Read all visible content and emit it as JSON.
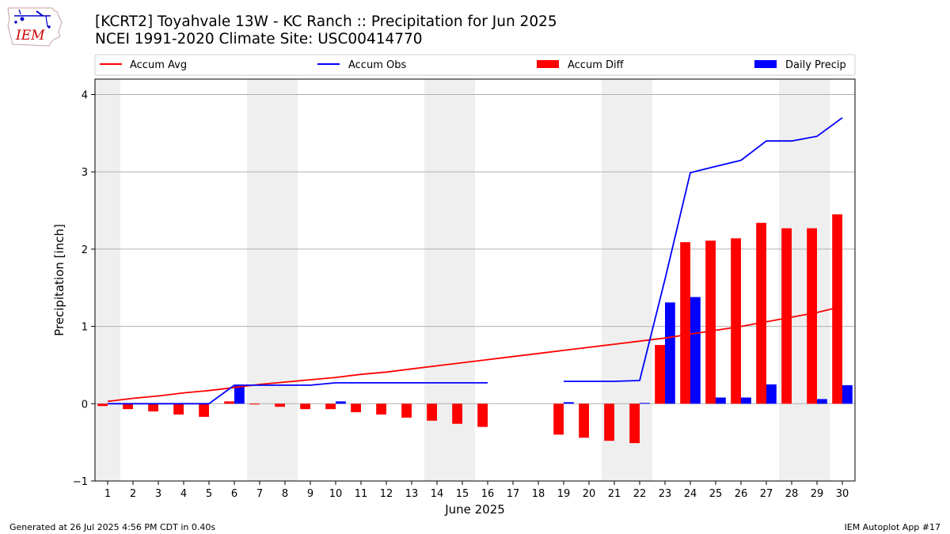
{
  "header": {
    "title_line1": "[KCRT2] Toyahvale 13W - KC Ranch :: Precipitation for Jun 2025",
    "title_line2": "NCEI 1991-2020 Climate Site: USC00414770",
    "logo_text": "IEM"
  },
  "footer": {
    "generated": "Generated at 26 Jul 2025 4:56 PM CDT in 0.40s",
    "app": "IEM Autoplot App #17"
  },
  "colors": {
    "accum_avg": "#ff0000",
    "accum_obs": "#0000ff",
    "accum_diff": "#ff0000",
    "daily_precip": "#0000ff",
    "weekend_shade": "#efefef",
    "grid": "#b0b0b0"
  },
  "chart_data": {
    "type": "bar",
    "xlabel": "June 2025",
    "ylabel": "Precipitation [inch]",
    "xlim": [
      0.5,
      30.5
    ],
    "ylim": [
      -1,
      4.2
    ],
    "yticks": [
      -1,
      0,
      1,
      2,
      3,
      4
    ],
    "xticks": [
      1,
      2,
      3,
      4,
      5,
      6,
      7,
      8,
      9,
      10,
      11,
      12,
      13,
      14,
      15,
      16,
      17,
      18,
      19,
      20,
      21,
      22,
      23,
      24,
      25,
      26,
      27,
      28,
      29,
      30
    ],
    "grid": "horizontal",
    "legend_placement": "top",
    "legend": [
      "Accum Avg",
      "Accum Obs",
      "Accum Diff",
      "Daily Precip"
    ],
    "weekends": [
      1,
      7,
      8,
      14,
      15,
      21,
      22,
      28,
      29
    ],
    "days": [
      1,
      2,
      3,
      4,
      5,
      6,
      7,
      8,
      9,
      10,
      11,
      12,
      13,
      14,
      15,
      16,
      17,
      18,
      19,
      20,
      21,
      22,
      23,
      24,
      25,
      26,
      27,
      28,
      29,
      30
    ],
    "series": [
      {
        "name": "Accum Avg",
        "kind": "line",
        "values": [
          0.03,
          0.07,
          0.1,
          0.14,
          0.17,
          0.21,
          0.25,
          0.28,
          0.31,
          0.34,
          0.38,
          0.41,
          0.45,
          0.49,
          0.53,
          0.57,
          0.61,
          0.65,
          0.69,
          0.73,
          0.77,
          0.81,
          0.85,
          0.9,
          0.95,
          1.0,
          1.06,
          1.12,
          1.18,
          1.26
        ]
      },
      {
        "name": "Accum Obs",
        "kind": "line",
        "values": [
          0.0,
          0.0,
          0.0,
          0.0,
          0.0,
          0.24,
          0.24,
          0.24,
          0.24,
          0.27,
          0.27,
          0.27,
          0.27,
          0.27,
          0.27,
          0.27,
          null,
          null,
          0.29,
          0.29,
          0.29,
          0.3,
          1.61,
          2.99,
          3.07,
          3.15,
          3.4,
          3.4,
          3.46,
          3.7
        ]
      },
      {
        "name": "Accum Diff",
        "kind": "bar",
        "values": [
          -0.03,
          -0.07,
          -0.1,
          -0.14,
          -0.17,
          0.03,
          -0.01,
          -0.04,
          -0.07,
          -0.07,
          -0.11,
          -0.14,
          -0.18,
          -0.22,
          -0.26,
          -0.3,
          null,
          null,
          -0.4,
          -0.44,
          -0.48,
          -0.51,
          0.76,
          2.09,
          2.11,
          2.14,
          2.34,
          2.27,
          2.27,
          2.45
        ]
      },
      {
        "name": "Daily Precip",
        "kind": "bar",
        "values": [
          0,
          0,
          0,
          0,
          0,
          0.24,
          0,
          0,
          0,
          0.03,
          0,
          0,
          0,
          0,
          0,
          0,
          0,
          0,
          0.02,
          0,
          0,
          0.01,
          1.31,
          1.38,
          0.08,
          0.08,
          0.25,
          0,
          0.06,
          0.24
        ]
      }
    ]
  }
}
